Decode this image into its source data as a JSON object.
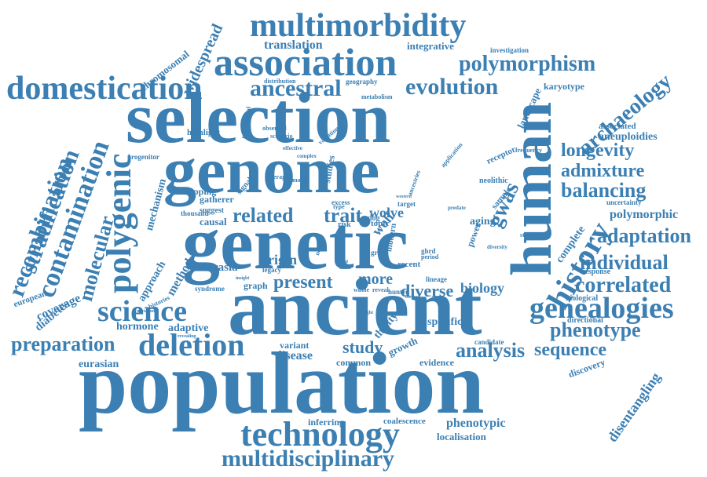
{
  "accent_color": "#3b7fb3",
  "words": {
    "population": "population",
    "ancient": "ancient",
    "genetic": "genetic",
    "genome": "genome",
    "selection": "selection",
    "human": "human",
    "association": "association",
    "multimorbidity": "multimorbidity",
    "domestication": "domestication",
    "technology": "technology",
    "multidisciplinary": "multidisciplinary",
    "science": "science",
    "deletion": "deletion",
    "preparation": "preparation",
    "genealogies": "genealogies",
    "history": "history",
    "polymorphism": "polymorphism",
    "evolution": "evolution",
    "ancestral": "ancestral",
    "archaeology": "archaeology",
    "longevity": "longevity",
    "admixture": "admixture",
    "balancing": "balancing",
    "adaptation": "adaptation",
    "individual": "individual",
    "correlated": "correlated",
    "phenotype": "phenotype",
    "sequence": "sequence",
    "analysis": "analysis",
    "polymorphic": "polymorphic",
    "related": "related",
    "trait": "trait",
    "present": "present",
    "polygenic": "polygenic",
    "contamination": "contamination",
    "stratification": "stratification",
    "recombination": "recombination",
    "molecular": "molecular",
    "gwas": "gwas",
    "study": "study",
    "disease": "disease",
    "variant": "variant",
    "common": "common",
    "biology": "biology",
    "diverse": "diverse",
    "wolve": "wolve",
    "wolf": "wolf",
    "origin": "origin",
    "eurasia": "eurasia",
    "eurasian": "eurasian",
    "widespread": "widespread",
    "chromosomal": "chromosomal",
    "translation": "translation",
    "integrative": "integrative",
    "investigation": "investigation",
    "karyotype": "karyotype",
    "landscape": "landscape",
    "associated": "associated",
    "aneuploidies": "aneuploidies",
    "uncertainty": "uncertainty",
    "detection": "detection",
    "complete": "complete",
    "response": "response",
    "biological": "biological",
    "directional": "directional",
    "discovery": "discovery",
    "disentangling": "disentangling",
    "phenotypic": "phenotypic",
    "localisation": "localisation",
    "coalescence": "coalescence",
    "inferring": "inferring",
    "evidence": "evidence",
    "growth": "growth",
    "thrifty": "thrifty",
    "specific": "specific",
    "candidate": "candidate",
    "hormone": "hormone",
    "adaptive": "adaptive",
    "coverage": "coverage",
    "diabetes": "diabetes",
    "european": "european",
    "approach": "approach",
    "method": "method",
    "mechanism": "mechanism",
    "mapping": "mapping",
    "highlight": "highlight",
    "progenitor": "progenitor",
    "thousand": "thousand",
    "suggest": "suggest",
    "causal": "causal",
    "gatherer": "gatherer",
    "graph": "graph",
    "syndrome": "syndrome",
    "histories": "histories",
    "recent": "recent",
    "more": "more",
    "aging": "aging",
    "lineage": "lineage",
    "hunter": "hunter",
    "reveal": "reveal",
    "whole": "whole",
    "former": "former",
    "dog": "dog",
    "risk": "risk",
    "topic": "topic",
    "excess": "excess",
    "target": "target",
    "neolithic": "neolithic",
    "sample": "sample",
    "power": "power",
    "receptor": "receptor",
    "frequency": "frequency",
    "distribution": "distribution",
    "geography": "geography",
    "metabolism": "metabolism",
    "neanderthal": "neanderthal",
    "observed": "observed",
    "scenario": "scenario",
    "variation": "variation",
    "effective": "effective",
    "complex": "complex",
    "studies": "studies",
    "signal": "signal",
    "type": "type",
    "model": "model",
    "average": "average",
    "application": "application",
    "ancestries": "ancestries",
    "western": "western",
    "predate": "predate",
    "strongest": "strongest",
    "diversity": "diversity",
    "modern": "modern",
    "ghrd": "ghrd",
    "grey": "grey",
    "period": "period",
    "meta": "meta",
    "time": "time",
    "novel": "novel",
    "legacy": "legacy",
    "mutation": "mutation",
    "revealing": "revealing",
    "weight": "weight",
    "insight": "insight",
    "joins": "joins"
  }
}
